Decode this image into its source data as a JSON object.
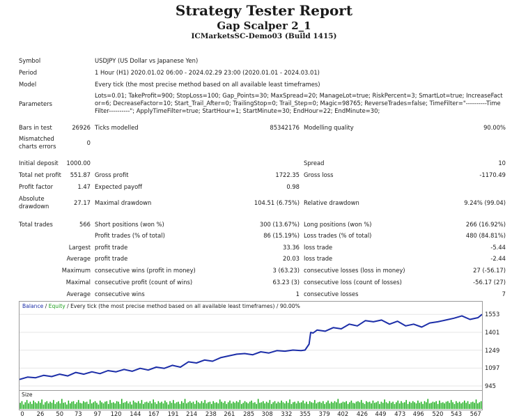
{
  "header": {
    "title": "Strategy Tester Report",
    "subtitle": "Gap Scalper 2_1",
    "build": "ICMarketsSC-Demo03 (Build 1415)"
  },
  "info": {
    "symbol_label": "Symbol",
    "symbol_value": "USDJPY (US Dollar vs Japanese Yen)",
    "period_label": "Period",
    "period_value": "1 Hour (H1) 2020.01.02 06:00 - 2024.02.29 23:00 (2020.01.01 - 2024.03.01)",
    "model_label": "Model",
    "model_value": "Every tick (the most precise method based on all available least timeframes)",
    "parameters_label": "Parameters",
    "parameters_value": "Lots=0.01; TakeProfit=900; StopLoss=100; Gap_Points=30; MaxSpread=20; ManageLot=true; RiskPercent=3; SmartLot=true; IncreaseFactor=6; DecreaseFactor=10; Start_Trail_After=0; TrailingStop=0; Trail_Step=0; Magic=98765; ReverseTrades=false; TimeFilter=\"----------Time Filter----------\"; ApplyTimeFilter=true; StartHour=1; StartMinute=30; EndHour=22; EndMinute=30;"
  },
  "stats": {
    "bars_label": "Bars in test",
    "bars_value": "26926",
    "ticks_label": "Ticks modelled",
    "ticks_value": "85342176",
    "quality_label": "Modelling quality",
    "quality_value": "90.00%",
    "mismatch_label_1": "Mismatched",
    "mismatch_label_2": "charts errors",
    "mismatch_value": "0",
    "deposit_label": "Initial deposit",
    "deposit_value": "1000.00",
    "spread_label": "Spread",
    "spread_value": "10",
    "net_label": "Total net profit",
    "net_value": "551.87",
    "gross_profit_label": "Gross profit",
    "gross_profit_value": "1722.35",
    "gross_loss_label": "Gross loss",
    "gross_loss_value": "-1170.49",
    "pf_label": "Profit factor",
    "pf_value": "1.47",
    "payoff_label": "Expected payoff",
    "payoff_value": "0.98",
    "abs_dd_label_1": "Absolute",
    "abs_dd_label_2": "drawdown",
    "abs_dd_value": "27.17",
    "max_dd_label": "Maximal drawdown",
    "max_dd_value": "104.51 (6.75%)",
    "rel_dd_label": "Relative drawdown",
    "rel_dd_value": "9.24% (99.04)",
    "trades_label": "Total trades",
    "trades_value": "566",
    "short_label": "Short positions (won %)",
    "short_value": "300 (13.67%)",
    "long_label": "Long positions (won %)",
    "long_value": "266 (16.92%)",
    "profit_trades_label": "Profit trades (% of total)",
    "profit_trades_value": "86 (15.19%)",
    "loss_trades_label": "Loss trades (% of total)",
    "loss_trades_value": "480 (84.81%)",
    "largest_label": "Largest",
    "largest_profit_label": "profit trade",
    "largest_profit_value": "33.36",
    "largest_loss_label": "loss trade",
    "largest_loss_value": "-5.44",
    "average_label": "Average",
    "average_profit_label": "profit trade",
    "average_profit_value": "20.03",
    "average_loss_label": "loss trade",
    "average_loss_value": "-2.44",
    "maximum_label": "Maximum",
    "max_cons_wins_label": "consecutive wins (profit in money)",
    "max_cons_wins_value": "3 (63.23)",
    "max_cons_losses_label": "consecutive losses (loss in money)",
    "max_cons_losses_value": "27 (-56.17)",
    "maximal_label": "Maximal",
    "maximal_profit_label": "consecutive profit (count of wins)",
    "maximal_profit_value": "63.23 (3)",
    "maximal_loss_label": "consecutive loss (count of losses)",
    "maximal_loss_value": "-56.17 (27)",
    "avg_cons_label": "Average",
    "avg_cons_wins_label": "consecutive wins",
    "avg_cons_wins_value": "1",
    "avg_cons_losses_label": "consecutive losses",
    "avg_cons_losses_value": "7"
  },
  "chart": {
    "caption_balance": "Balance",
    "caption_sep": " / ",
    "caption_equity": "Equity",
    "caption_rest": " / Every tick (the most precise method based on all available least timeframes) / 90.00%",
    "size_label": "Size",
    "colors": {
      "balance": "#1c2ea8",
      "equity": "#1ea01e",
      "size_bars": "#22b022",
      "balance_label": "#1c2ea8",
      "equity_label": "#1ea01e"
    },
    "y_ticks": [
      "1553",
      "1401",
      "1249",
      "1097",
      "945"
    ],
    "x_ticks": [
      "0",
      "26",
      "50",
      "73",
      "97",
      "120",
      "144",
      "167",
      "191",
      "214",
      "238",
      "261",
      "285",
      "308",
      "332",
      "355",
      "379",
      "402",
      "426",
      "449",
      "473",
      "496",
      "520",
      "543",
      "567"
    ]
  },
  "chart_data": {
    "type": "line",
    "xlabel": "",
    "ylabel": "",
    "xlim": [
      0,
      575
    ],
    "ylim": [
      945,
      1590
    ],
    "series": [
      {
        "name": "Balance",
        "points": [
          [
            0,
            1000
          ],
          [
            10,
            1020
          ],
          [
            20,
            1015
          ],
          [
            30,
            1035
          ],
          [
            40,
            1025
          ],
          [
            50,
            1045
          ],
          [
            60,
            1030
          ],
          [
            70,
            1060
          ],
          [
            80,
            1045
          ],
          [
            90,
            1065
          ],
          [
            100,
            1050
          ],
          [
            110,
            1075
          ],
          [
            120,
            1065
          ],
          [
            130,
            1085
          ],
          [
            140,
            1070
          ],
          [
            150,
            1095
          ],
          [
            160,
            1080
          ],
          [
            170,
            1105
          ],
          [
            180,
            1095
          ],
          [
            190,
            1120
          ],
          [
            200,
            1105
          ],
          [
            210,
            1150
          ],
          [
            220,
            1140
          ],
          [
            230,
            1165
          ],
          [
            240,
            1155
          ],
          [
            250,
            1185
          ],
          [
            260,
            1200
          ],
          [
            270,
            1215
          ],
          [
            280,
            1220
          ],
          [
            290,
            1210
          ],
          [
            300,
            1235
          ],
          [
            310,
            1225
          ],
          [
            320,
            1245
          ],
          [
            330,
            1240
          ],
          [
            340,
            1250
          ],
          [
            350,
            1245
          ],
          [
            355,
            1250
          ],
          [
            360,
            1300
          ],
          [
            362,
            1400
          ],
          [
            365,
            1395
          ],
          [
            370,
            1420
          ],
          [
            380,
            1410
          ],
          [
            390,
            1440
          ],
          [
            400,
            1430
          ],
          [
            410,
            1470
          ],
          [
            420,
            1455
          ],
          [
            430,
            1500
          ],
          [
            440,
            1490
          ],
          [
            450,
            1505
          ],
          [
            460,
            1470
          ],
          [
            470,
            1495
          ],
          [
            480,
            1455
          ],
          [
            490,
            1470
          ],
          [
            500,
            1445
          ],
          [
            510,
            1480
          ],
          [
            520,
            1490
          ],
          [
            530,
            1505
          ],
          [
            540,
            1520
          ],
          [
            550,
            1540
          ],
          [
            560,
            1510
          ],
          [
            570,
            1525
          ],
          [
            575,
            1553
          ]
        ]
      }
    ],
    "size_bars": [
      0.55,
      0.7,
      0.4,
      0.6,
      0.8,
      0.5,
      0.65,
      0.45,
      0.75,
      0.6,
      0.5,
      0.7,
      0.55,
      0.85,
      0.4,
      0.6,
      0.7,
      0.5,
      0.65,
      0.55,
      0.8,
      0.45,
      0.6,
      0.7,
      0.5,
      0.9,
      0.55,
      0.6,
      0.4,
      0.75,
      0.5,
      0.65,
      0.7,
      0.45,
      0.6,
      0.8,
      0.55,
      0.5,
      0.7,
      0.6,
      0.65,
      0.45,
      0.85,
      0.5,
      0.6,
      0.7,
      0.55,
      0.4,
      0.75,
      0.6,
      0.5,
      0.65,
      0.7,
      0.45,
      0.8,
      0.55,
      0.6,
      0.5,
      0.7,
      0.65,
      0.45,
      0.9,
      0.55,
      0.6,
      0.7,
      0.5,
      0.65,
      0.4,
      0.75,
      0.6,
      0.55,
      0.7,
      0.5,
      0.8,
      0.45,
      0.6,
      0.65,
      0.55,
      0.7,
      0.5,
      0.85,
      0.6,
      0.45,
      0.7,
      0.55,
      0.65,
      0.5,
      0.75,
      0.6,
      0.4,
      0.7,
      0.55,
      0.8,
      0.5,
      0.6,
      0.65,
      0.45,
      0.7,
      0.55,
      0.9,
      0.5,
      0.6,
      0.7,
      0.55,
      0.65,
      0.45,
      0.75,
      0.6,
      0.5,
      0.7,
      0.55,
      0.8,
      0.5,
      0.6,
      0.65,
      0.45,
      0.7,
      0.55,
      0.6,
      0.5,
      0.85,
      0.65,
      0.55,
      0.7,
      0.45,
      0.6,
      0.75,
      0.5,
      0.65,
      0.55,
      0.7,
      0.6,
      0.8,
      0.45,
      0.55,
      0.7,
      0.6,
      0.5,
      0.65,
      0.75,
      0.55,
      0.6,
      0.45,
      0.9,
      0.55,
      0.6,
      0.7,
      0.5,
      0.65,
      0.55,
      0.8,
      0.45,
      0.6,
      0.7,
      0.5,
      0.65,
      0.55,
      0.75,
      0.6,
      0.5,
      0.7,
      0.55,
      0.85,
      0.45,
      0.6,
      0.65,
      0.5,
      0.7,
      0.55,
      0.6,
      0.75,
      0.5,
      0.65,
      0.45,
      0.7,
      0.6,
      0.55,
      0.8,
      0.5,
      0.6,
      0.65,
      0.55,
      0.7,
      0.45,
      0.6,
      0.75,
      0.5,
      0.65,
      0.55,
      0.7,
      0.6,
      0.9,
      0.5,
      0.55,
      0.65,
      0.6,
      0.7,
      0.45,
      0.6,
      0.75,
      0.55,
      0.5,
      0.65,
      0.7,
      0.6,
      0.8,
      0.55,
      0.45,
      0.7,
      0.6,
      0.65,
      0.5,
      0.75,
      0.55,
      0.6,
      0.7,
      0.45,
      0.65,
      0.55,
      0.85,
      0.6,
      0.5,
      0.7,
      0.55,
      0.65,
      0.45,
      0.6,
      0.75,
      0.5,
      0.7,
      0.55,
      0.6,
      0.8,
      0.45,
      0.65,
      0.55,
      0.7,
      0.6,
      0.5,
      0.75,
      0.55,
      0.65,
      0.45,
      0.7,
      0.6,
      0.9,
      0.5,
      0.55,
      0.65,
      0.6,
      0.7,
      0.45,
      0.75,
      0.55,
      0.6,
      0.5,
      0.65,
      0.7,
      0.55,
      0.8,
      0.6,
      0.45,
      0.7,
      0.55,
      0.65,
      0.5,
      0.6,
      0.75,
      0.55,
      0.7,
      0.45,
      0.6,
      0.65,
      0.55,
      0.85,
      0.5,
      0.6,
      0.7
    ]
  }
}
